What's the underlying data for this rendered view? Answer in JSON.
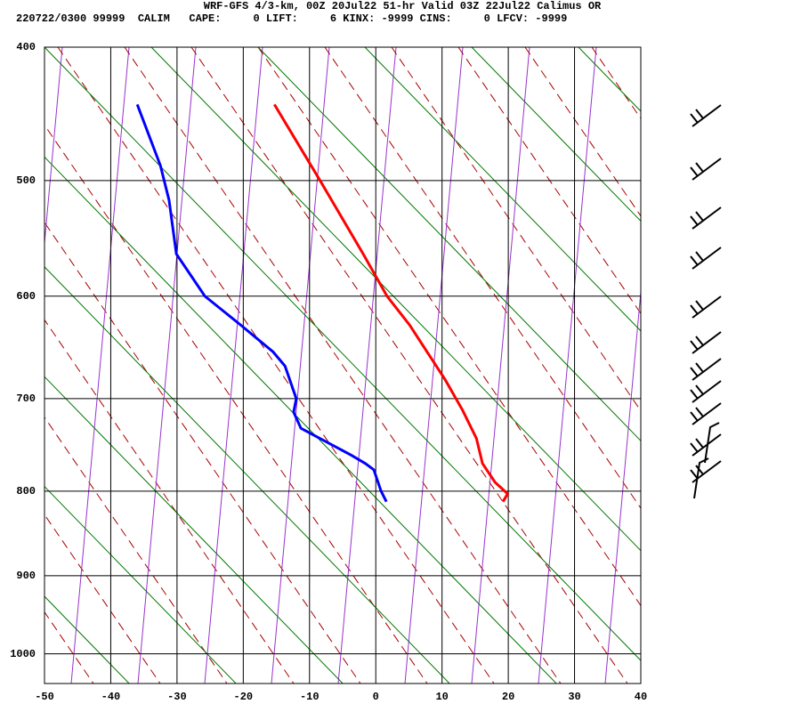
{
  "chart_data": {
    "type": "skew-t",
    "title": "WRF-GFS 4/3-km, 00Z 20Jul22 51-hr Valid 03Z 22Jul22 Calimus OR",
    "subtitle": "220722/0300 99999  CALIM   CAPE:     0 LIFT:     6 KINX: -9999 CINS:     0 LFCV: -9999",
    "y_scale": "exner",
    "xlim": [
      -50,
      40
    ],
    "xticks": [
      -50,
      -40,
      -30,
      -20,
      -10,
      0,
      10,
      20,
      30,
      40
    ],
    "ylim": [
      400,
      1040
    ],
    "yticks": [
      400,
      500,
      600,
      700,
      800,
      900,
      1000
    ],
    "grid": true,
    "series": [
      {
        "color": "#ff0000",
        "x": [
          -15.3,
          -8.4,
          -1.9,
          1.7,
          5.1,
          10.5,
          13.1,
          15.2,
          16.1,
          18.0,
          19.9,
          19.2
        ],
        "values": [
          441,
          500,
          562,
          600,
          627,
          681,
          712,
          742,
          769,
          790,
          803,
          812
        ]
      },
      {
        "color": "#0000ff",
        "x": [
          -36.0,
          -32.5,
          -31.2,
          -30.1,
          -25.8,
          -20.4,
          -15.5,
          -13.7,
          -12.0,
          -12.4,
          -11.3,
          -3.7,
          -1.6,
          -0.3,
          0.8,
          1.6
        ],
        "values": [
          441,
          488,
          516,
          562,
          600,
          627,
          653,
          667,
          700,
          714,
          731,
          760,
          769,
          776,
          800,
          812
        ]
      }
    ]
  }
}
